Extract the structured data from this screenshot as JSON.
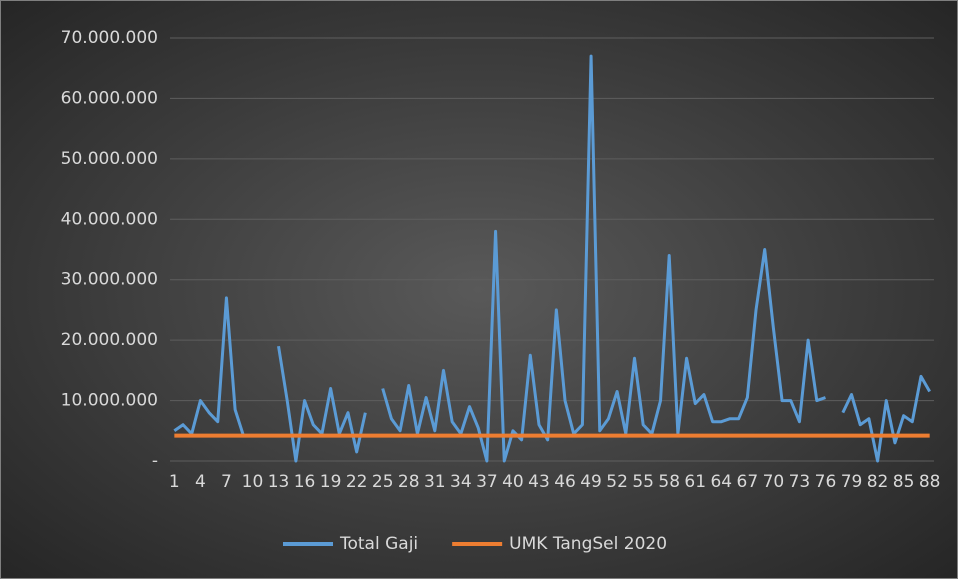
{
  "chart_data": {
    "type": "line",
    "categories": [
      "1",
      null,
      null,
      "4",
      null,
      null,
      "7",
      null,
      null,
      "10",
      null,
      null,
      "13",
      null,
      null,
      "16",
      null,
      null,
      "19",
      null,
      null,
      "22",
      null,
      null,
      "25",
      null,
      null,
      "28",
      null,
      null,
      "31",
      null,
      null,
      "34",
      null,
      null,
      "37",
      null,
      null,
      "40",
      null,
      null,
      "43",
      null,
      null,
      "46",
      null,
      null,
      "49",
      null,
      null,
      "52",
      null,
      null,
      "55",
      null,
      null,
      "58",
      null,
      null,
      "61",
      null,
      null,
      "64",
      null,
      null,
      "67",
      null,
      null,
      "70",
      null,
      null,
      "73",
      null,
      null,
      "76",
      null,
      null,
      "79",
      null,
      null,
      "82",
      null,
      null,
      "85",
      null,
      null,
      "88"
    ],
    "series": [
      {
        "name": "Total Gaji",
        "color": "#5b9bd5",
        "values": [
          5000000,
          6000000,
          4500000,
          10000000,
          8000000,
          6500000,
          27000000,
          8500000,
          4000000,
          null,
          null,
          null,
          19000000,
          10000000,
          0,
          10000000,
          6000000,
          4500000,
          12000000,
          4500000,
          8000000,
          1500000,
          8000000,
          null,
          12000000,
          7000000,
          5000000,
          12500000,
          4500000,
          10500000,
          5000000,
          15000000,
          6500000,
          4500000,
          9000000,
          5500000,
          0,
          38000000,
          0,
          5000000,
          3500000,
          17500000,
          6000000,
          3500000,
          25000000,
          10000000,
          4500000,
          6000000,
          67000000,
          5000000,
          7000000,
          11500000,
          4500000,
          17000000,
          6000000,
          4500000,
          10000000,
          34000000,
          4500000,
          17000000,
          9500000,
          11000000,
          6500000,
          6500000,
          7000000,
          7000000,
          10500000,
          25000000,
          35000000,
          22000000,
          10000000,
          10000000,
          6500000,
          20000000,
          10000000,
          10500000,
          null,
          8000000,
          11000000,
          6000000,
          7000000,
          0,
          10000000,
          3000000,
          7500000,
          6500000,
          14000000,
          11500000
        ]
      },
      {
        "name": "UMK TangSel 2020",
        "color": "#ed7d31",
        "values": [
          4200000,
          4200000,
          4200000,
          4200000,
          4200000,
          4200000,
          4200000,
          4200000,
          4200000,
          4200000,
          4200000,
          4200000,
          4200000,
          4200000,
          4200000,
          4200000,
          4200000,
          4200000,
          4200000,
          4200000,
          4200000,
          4200000,
          4200000,
          4200000,
          4200000,
          4200000,
          4200000,
          4200000,
          4200000,
          4200000,
          4200000,
          4200000,
          4200000,
          4200000,
          4200000,
          4200000,
          4200000,
          4200000,
          4200000,
          4200000,
          4200000,
          4200000,
          4200000,
          4200000,
          4200000,
          4200000,
          4200000,
          4200000,
          4200000,
          4200000,
          4200000,
          4200000,
          4200000,
          4200000,
          4200000,
          4200000,
          4200000,
          4200000,
          4200000,
          4200000,
          4200000,
          4200000,
          4200000,
          4200000,
          4200000,
          4200000,
          4200000,
          4200000,
          4200000,
          4200000,
          4200000,
          4200000,
          4200000,
          4200000,
          4200000,
          4200000,
          4200000,
          4200000,
          4200000,
          4200000,
          4200000,
          4200000,
          4200000,
          4200000,
          4200000,
          4200000,
          4200000,
          4200000
        ]
      }
    ],
    "ylim": [
      0,
      70000000
    ],
    "yticks": [
      {
        "value": 0,
        "label": "-"
      },
      {
        "value": 10000000,
        "label": "10.000.000"
      },
      {
        "value": 20000000,
        "label": "20.000.000"
      },
      {
        "value": 30000000,
        "label": "30.000.000"
      },
      {
        "value": 40000000,
        "label": "40.000.000"
      },
      {
        "value": 50000000,
        "label": "50.000.000"
      },
      {
        "value": 60000000,
        "label": "60.000.000"
      },
      {
        "value": 70000000,
        "label": "70.000.000"
      }
    ],
    "grid": true,
    "legend": "bottom"
  }
}
